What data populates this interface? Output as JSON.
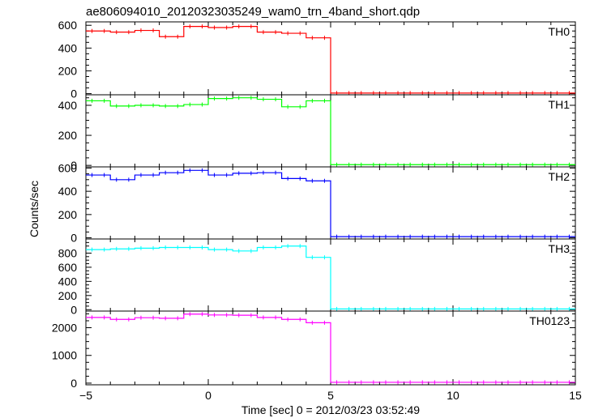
{
  "chart_data": {
    "type": "line",
    "title": "ae806094010_20120323035249_wam0_trn_4band_short.qdp",
    "xlabel": "Time [sec] 0 = 2012/03/23 03:52:49",
    "ylabel": "Counts/sec",
    "xlim": [
      -5,
      15
    ],
    "x_ticks": [
      -5,
      0,
      5,
      10,
      15
    ],
    "x_tick_labels": [
      "−5",
      "0",
      "5",
      "10",
      "15"
    ],
    "bin_width": 0.5,
    "x": [
      -4.75,
      -4.25,
      -3.75,
      -3.25,
      -2.75,
      -2.25,
      -1.75,
      -1.25,
      -0.75,
      -0.25,
      0.25,
      0.75,
      1.25,
      1.75,
      2.25,
      2.75,
      3.25,
      3.75,
      4.25,
      4.75,
      5.25,
      5.75,
      6.25,
      6.75,
      7.25,
      7.75,
      8.25,
      8.75,
      9.25,
      9.75,
      10.25,
      10.75,
      11.25,
      11.75,
      12.25,
      12.75,
      13.25,
      13.75,
      14.25,
      14.75
    ],
    "panels": [
      {
        "name": "TH0",
        "color": "#ff0000",
        "ylim": [
          -10,
          630
        ],
        "y_ticks": [
          0,
          200,
          400,
          600
        ],
        "y_tick_labels": [
          "0",
          "200",
          "400",
          "600"
        ],
        "values": [
          550,
          550,
          540,
          540,
          555,
          555,
          500,
          500,
          590,
          590,
          580,
          580,
          590,
          590,
          540,
          540,
          530,
          530,
          490,
          490,
          5,
          5,
          5,
          5,
          5,
          5,
          5,
          5,
          5,
          5,
          5,
          5,
          5,
          5,
          5,
          5,
          5,
          5,
          5,
          5
        ]
      },
      {
        "name": "TH1",
        "color": "#00ff00",
        "ylim": [
          -10,
          470
        ],
        "y_ticks": [
          0,
          200,
          400
        ],
        "y_tick_labels": [
          "0",
          "200",
          "400"
        ],
        "values": [
          430,
          430,
          395,
          395,
          400,
          400,
          395,
          395,
          405,
          405,
          445,
          445,
          450,
          450,
          440,
          440,
          390,
          390,
          430,
          430,
          5,
          5,
          5,
          5,
          5,
          5,
          5,
          5,
          5,
          5,
          5,
          5,
          5,
          5,
          5,
          5,
          5,
          5,
          5,
          5
        ]
      },
      {
        "name": "TH2",
        "color": "#0000ff",
        "ylim": [
          -10,
          610
        ],
        "y_ticks": [
          0,
          200,
          400,
          600
        ],
        "y_tick_labels": [
          "0",
          "200",
          "400",
          "600"
        ],
        "values": [
          540,
          540,
          500,
          500,
          540,
          540,
          560,
          560,
          580,
          580,
          540,
          540,
          555,
          555,
          560,
          560,
          510,
          510,
          490,
          490,
          10,
          10,
          10,
          10,
          10,
          10,
          10,
          10,
          10,
          10,
          10,
          10,
          10,
          10,
          10,
          10,
          10,
          10,
          10,
          10
        ]
      },
      {
        "name": "TH3",
        "color": "#00ffff",
        "ylim": [
          -20,
          1000
        ],
        "y_ticks": [
          0,
          200,
          400,
          600,
          800
        ],
        "y_tick_labels": [
          "0",
          "200",
          "400",
          "600",
          "800"
        ],
        "values": [
          850,
          850,
          860,
          860,
          870,
          870,
          880,
          880,
          880,
          880,
          850,
          850,
          830,
          830,
          880,
          880,
          900,
          900,
          740,
          740,
          10,
          10,
          10,
          10,
          10,
          10,
          10,
          10,
          10,
          10,
          10,
          10,
          10,
          10,
          10,
          10,
          10,
          10,
          10,
          10
        ]
      },
      {
        "name": "TH0123",
        "color": "#ff00ff",
        "ylim": [
          -60,
          2600
        ],
        "y_ticks": [
          0,
          1000,
          2000
        ],
        "y_tick_labels": [
          "0",
          "1000",
          "2000"
        ],
        "values": [
          2370,
          2370,
          2300,
          2300,
          2360,
          2360,
          2340,
          2340,
          2490,
          2490,
          2460,
          2460,
          2450,
          2450,
          2370,
          2370,
          2300,
          2300,
          2180,
          2180,
          30,
          30,
          30,
          30,
          30,
          30,
          30,
          30,
          30,
          30,
          30,
          30,
          30,
          30,
          30,
          30,
          30,
          30,
          30,
          30
        ]
      }
    ]
  }
}
